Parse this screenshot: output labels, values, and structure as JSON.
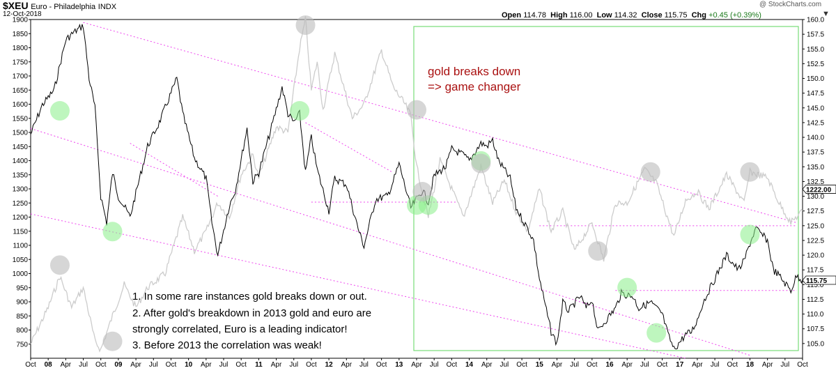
{
  "header": {
    "symbol": "$XEU",
    "description": "Euro - Philadelphia",
    "exchange": "INDX",
    "date": "12-Oct-2018",
    "watermark": "@ StockCharts.com",
    "open_label": "Open",
    "open": "114.78",
    "high_label": "High",
    "high": "116.00",
    "low_label": "Low",
    "low": "114.32",
    "close_label": "Close",
    "close": "115.75",
    "chg_label": "Chg",
    "chg": "+0.45 (+0.39%)"
  },
  "colors": {
    "euro_line": "#000000",
    "gold_line": "#cccccc",
    "trend_lines": "#ee44ee",
    "highlight_box": "#77dd77",
    "green_circles": "#88ee88",
    "gray_circles": "#bbbbbb",
    "headline_text": "#aa1111"
  },
  "annotations": {
    "headline_1": "gold breaks down",
    "headline_2": "=> game changer",
    "note_1": "1. In some rare instances gold breaks down or out.",
    "note_2": "2. After gold's breakdown in 2013 gold and euro are",
    "note_3": "strongly correlated, Euro is a leading indicator!",
    "note_4": "3. Before 2013 the correlation was weak!"
  },
  "chart_data": {
    "type": "line",
    "title": "$XEU Euro - Philadelphia INDX",
    "left_axis": {
      "label": "",
      "ylim": [
        700,
        1900
      ],
      "ticks": [
        "750",
        "800",
        "850",
        "900",
        "950",
        "1000",
        "1050",
        "1100",
        "1150",
        "1200",
        "1250",
        "1300",
        "1350",
        "1400",
        "1450",
        "1500",
        "1550",
        "1600",
        "1650",
        "1700",
        "1750",
        "1800",
        "1850",
        "1900"
      ],
      "last_value_label": "1222.00"
    },
    "right_axis": {
      "label": "",
      "ylim": [
        102.5,
        160.0
      ],
      "ticks": [
        "105.0",
        "107.5",
        "110.0",
        "112.5",
        "115.0",
        "117.5",
        "120.0",
        "122.5",
        "125.0",
        "127.5",
        "130.0",
        "132.5",
        "135.0",
        "137.5",
        "140.0",
        "142.5",
        "145.0",
        "147.5",
        "150.0",
        "152.5",
        "155.0",
        "157.5",
        "160.0"
      ],
      "last_value_label": "115.75"
    },
    "x_labels": [
      "Oct",
      "08",
      "Apr",
      "Jul",
      "Oct",
      "09",
      "Apr",
      "Jul",
      "Oct",
      "10",
      "Apr",
      "Jul",
      "Oct",
      "11",
      "Apr",
      "Jul",
      "Oct",
      "12",
      "Apr",
      "Jul",
      "Oct",
      "13",
      "Apr",
      "Jul",
      "Oct",
      "14",
      "Apr",
      "Jul",
      "Oct",
      "15",
      "Apr",
      "Jul",
      "Oct",
      "16",
      "Apr",
      "Jul",
      "Oct",
      "17",
      "Apr",
      "Jul",
      "Oct",
      "18",
      "Apr",
      "Jul",
      "Oct"
    ],
    "x_range": [
      "2007-10",
      "2018-10"
    ],
    "grid": false,
    "series": [
      {
        "name": "Euro",
        "axis": "right",
        "points": [
          [
            "2007-10",
            140.5
          ],
          [
            "2007-12",
            145.5
          ],
          [
            "2008-02",
            148.0
          ],
          [
            "2008-04",
            156.5
          ],
          [
            "2008-05",
            157.5
          ],
          [
            "2008-07",
            159.0
          ],
          [
            "2008-08",
            150.0
          ],
          [
            "2008-09",
            145.0
          ],
          [
            "2008-10",
            130.0
          ],
          [
            "2008-11",
            125.5
          ],
          [
            "2008-12",
            134.0
          ],
          [
            "2009-01",
            130.0
          ],
          [
            "2009-03",
            126.5
          ],
          [
            "2009-04",
            130.5
          ],
          [
            "2009-06",
            138.5
          ],
          [
            "2009-08",
            142.5
          ],
          [
            "2009-10",
            147.5
          ],
          [
            "2009-11",
            150.0
          ],
          [
            "2009-12",
            144.0
          ],
          [
            "2010-02",
            136.5
          ],
          [
            "2010-04",
            133.0
          ],
          [
            "2010-05",
            125.5
          ],
          [
            "2010-06",
            120.0
          ],
          [
            "2010-08",
            128.5
          ],
          [
            "2010-09",
            131.0
          ],
          [
            "2010-11",
            141.5
          ],
          [
            "2010-12",
            132.5
          ],
          [
            "2011-01",
            134.0
          ],
          [
            "2011-03",
            141.0
          ],
          [
            "2011-05",
            148.5
          ],
          [
            "2011-06",
            144.0
          ],
          [
            "2011-07",
            142.5
          ],
          [
            "2011-08",
            144.0
          ],
          [
            "2011-09",
            134.0
          ],
          [
            "2011-10",
            140.0
          ],
          [
            "2011-11",
            134.5
          ],
          [
            "2012-01",
            127.5
          ],
          [
            "2012-02",
            133.0
          ],
          [
            "2012-04",
            132.0
          ],
          [
            "2012-06",
            124.5
          ],
          [
            "2012-07",
            121.5
          ],
          [
            "2012-08",
            125.5
          ],
          [
            "2012-09",
            129.5
          ],
          [
            "2012-11",
            130.0
          ],
          [
            "2012-12",
            132.5
          ],
          [
            "2013-01",
            135.5
          ],
          [
            "2013-03",
            128.0
          ],
          [
            "2013-05",
            131.0
          ],
          [
            "2013-06",
            129.0
          ],
          [
            "2013-07",
            133.5
          ],
          [
            "2013-09",
            135.0
          ],
          [
            "2013-10",
            138.0
          ],
          [
            "2013-12",
            137.0
          ],
          [
            "2014-01",
            136.0
          ],
          [
            "2014-03",
            139.0
          ],
          [
            "2014-04",
            138.5
          ],
          [
            "2014-05",
            139.5
          ],
          [
            "2014-06",
            136.0
          ],
          [
            "2014-08",
            133.0
          ],
          [
            "2014-09",
            128.0
          ],
          [
            "2014-11",
            124.5
          ],
          [
            "2014-12",
            122.5
          ],
          [
            "2015-01",
            116.0
          ],
          [
            "2015-03",
            107.0
          ],
          [
            "2015-04",
            105.0
          ],
          [
            "2015-05",
            112.0
          ],
          [
            "2015-06",
            110.5
          ],
          [
            "2015-08",
            113.0
          ],
          [
            "2015-09",
            111.0
          ],
          [
            "2015-10",
            112.5
          ],
          [
            "2015-11",
            107.0
          ],
          [
            "2015-12",
            108.5
          ],
          [
            "2016-02",
            111.0
          ],
          [
            "2016-03",
            113.5
          ],
          [
            "2016-05",
            113.0
          ],
          [
            "2016-06",
            111.0
          ],
          [
            "2016-08",
            112.0
          ],
          [
            "2016-10",
            110.0
          ],
          [
            "2016-11",
            106.5
          ],
          [
            "2016-12",
            104.0
          ],
          [
            "2017-02",
            106.5
          ],
          [
            "2017-03",
            107.0
          ],
          [
            "2017-04",
            109.0
          ],
          [
            "2017-05",
            112.0
          ],
          [
            "2017-06",
            114.0
          ],
          [
            "2017-08",
            118.0
          ],
          [
            "2017-09",
            120.0
          ],
          [
            "2017-11",
            117.5
          ],
          [
            "2017-12",
            119.0
          ],
          [
            "2018-01",
            122.0
          ],
          [
            "2018-02",
            124.5
          ],
          [
            "2018-03",
            123.5
          ],
          [
            "2018-04",
            122.5
          ],
          [
            "2018-05",
            117.5
          ],
          [
            "2018-06",
            116.5
          ],
          [
            "2018-08",
            114.0
          ],
          [
            "2018-09",
            116.5
          ],
          [
            "2018-10",
            115.75
          ]
        ]
      },
      {
        "name": "Gold",
        "axis": "left",
        "points": [
          [
            "2007-10",
            750
          ],
          [
            "2008-01",
            880
          ],
          [
            "2008-03",
            990
          ],
          [
            "2008-05",
            880
          ],
          [
            "2008-07",
            950
          ],
          [
            "2008-09",
            760
          ],
          [
            "2008-10",
            730
          ],
          [
            "2008-12",
            850
          ],
          [
            "2009-02",
            960
          ],
          [
            "2009-04",
            880
          ],
          [
            "2009-06",
            950
          ],
          [
            "2009-09",
            1000
          ],
          [
            "2009-12",
            1200
          ],
          [
            "2010-02",
            1080
          ],
          [
            "2010-04",
            1150
          ],
          [
            "2010-06",
            1250
          ],
          [
            "2010-08",
            1200
          ],
          [
            "2010-10",
            1350
          ],
          [
            "2010-12",
            1420
          ],
          [
            "2011-01",
            1340
          ],
          [
            "2011-04",
            1520
          ],
          [
            "2011-06",
            1500
          ],
          [
            "2011-08",
            1800
          ],
          [
            "2011-09",
            1900
          ],
          [
            "2011-10",
            1650
          ],
          [
            "2011-11",
            1750
          ],
          [
            "2011-12",
            1580
          ],
          [
            "2012-02",
            1780
          ],
          [
            "2012-05",
            1550
          ],
          [
            "2012-07",
            1600
          ],
          [
            "2012-10",
            1790
          ],
          [
            "2012-12",
            1660
          ],
          [
            "2013-02",
            1600
          ],
          [
            "2013-03",
            1560
          ],
          [
            "2013-04",
            1380
          ],
          [
            "2013-06",
            1200
          ],
          [
            "2013-08",
            1400
          ],
          [
            "2013-10",
            1300
          ],
          [
            "2013-12",
            1200
          ],
          [
            "2014-03",
            1380
          ],
          [
            "2014-05",
            1250
          ],
          [
            "2014-07",
            1330
          ],
          [
            "2014-09",
            1220
          ],
          [
            "2014-11",
            1150
          ],
          [
            "2015-01",
            1300
          ],
          [
            "2015-03",
            1150
          ],
          [
            "2015-05",
            1220
          ],
          [
            "2015-07",
            1080
          ],
          [
            "2015-10",
            1180
          ],
          [
            "2015-12",
            1050
          ],
          [
            "2016-02",
            1250
          ],
          [
            "2016-04",
            1250
          ],
          [
            "2016-07",
            1370
          ],
          [
            "2016-09",
            1320
          ],
          [
            "2016-12",
            1130
          ],
          [
            "2017-02",
            1260
          ],
          [
            "2017-04",
            1290
          ],
          [
            "2017-06",
            1230
          ],
          [
            "2017-09",
            1350
          ],
          [
            "2017-12",
            1250
          ],
          [
            "2018-01",
            1360
          ],
          [
            "2018-04",
            1340
          ],
          [
            "2018-06",
            1250
          ],
          [
            "2018-08",
            1180
          ],
          [
            "2018-10",
            1222
          ]
        ]
      }
    ]
  }
}
